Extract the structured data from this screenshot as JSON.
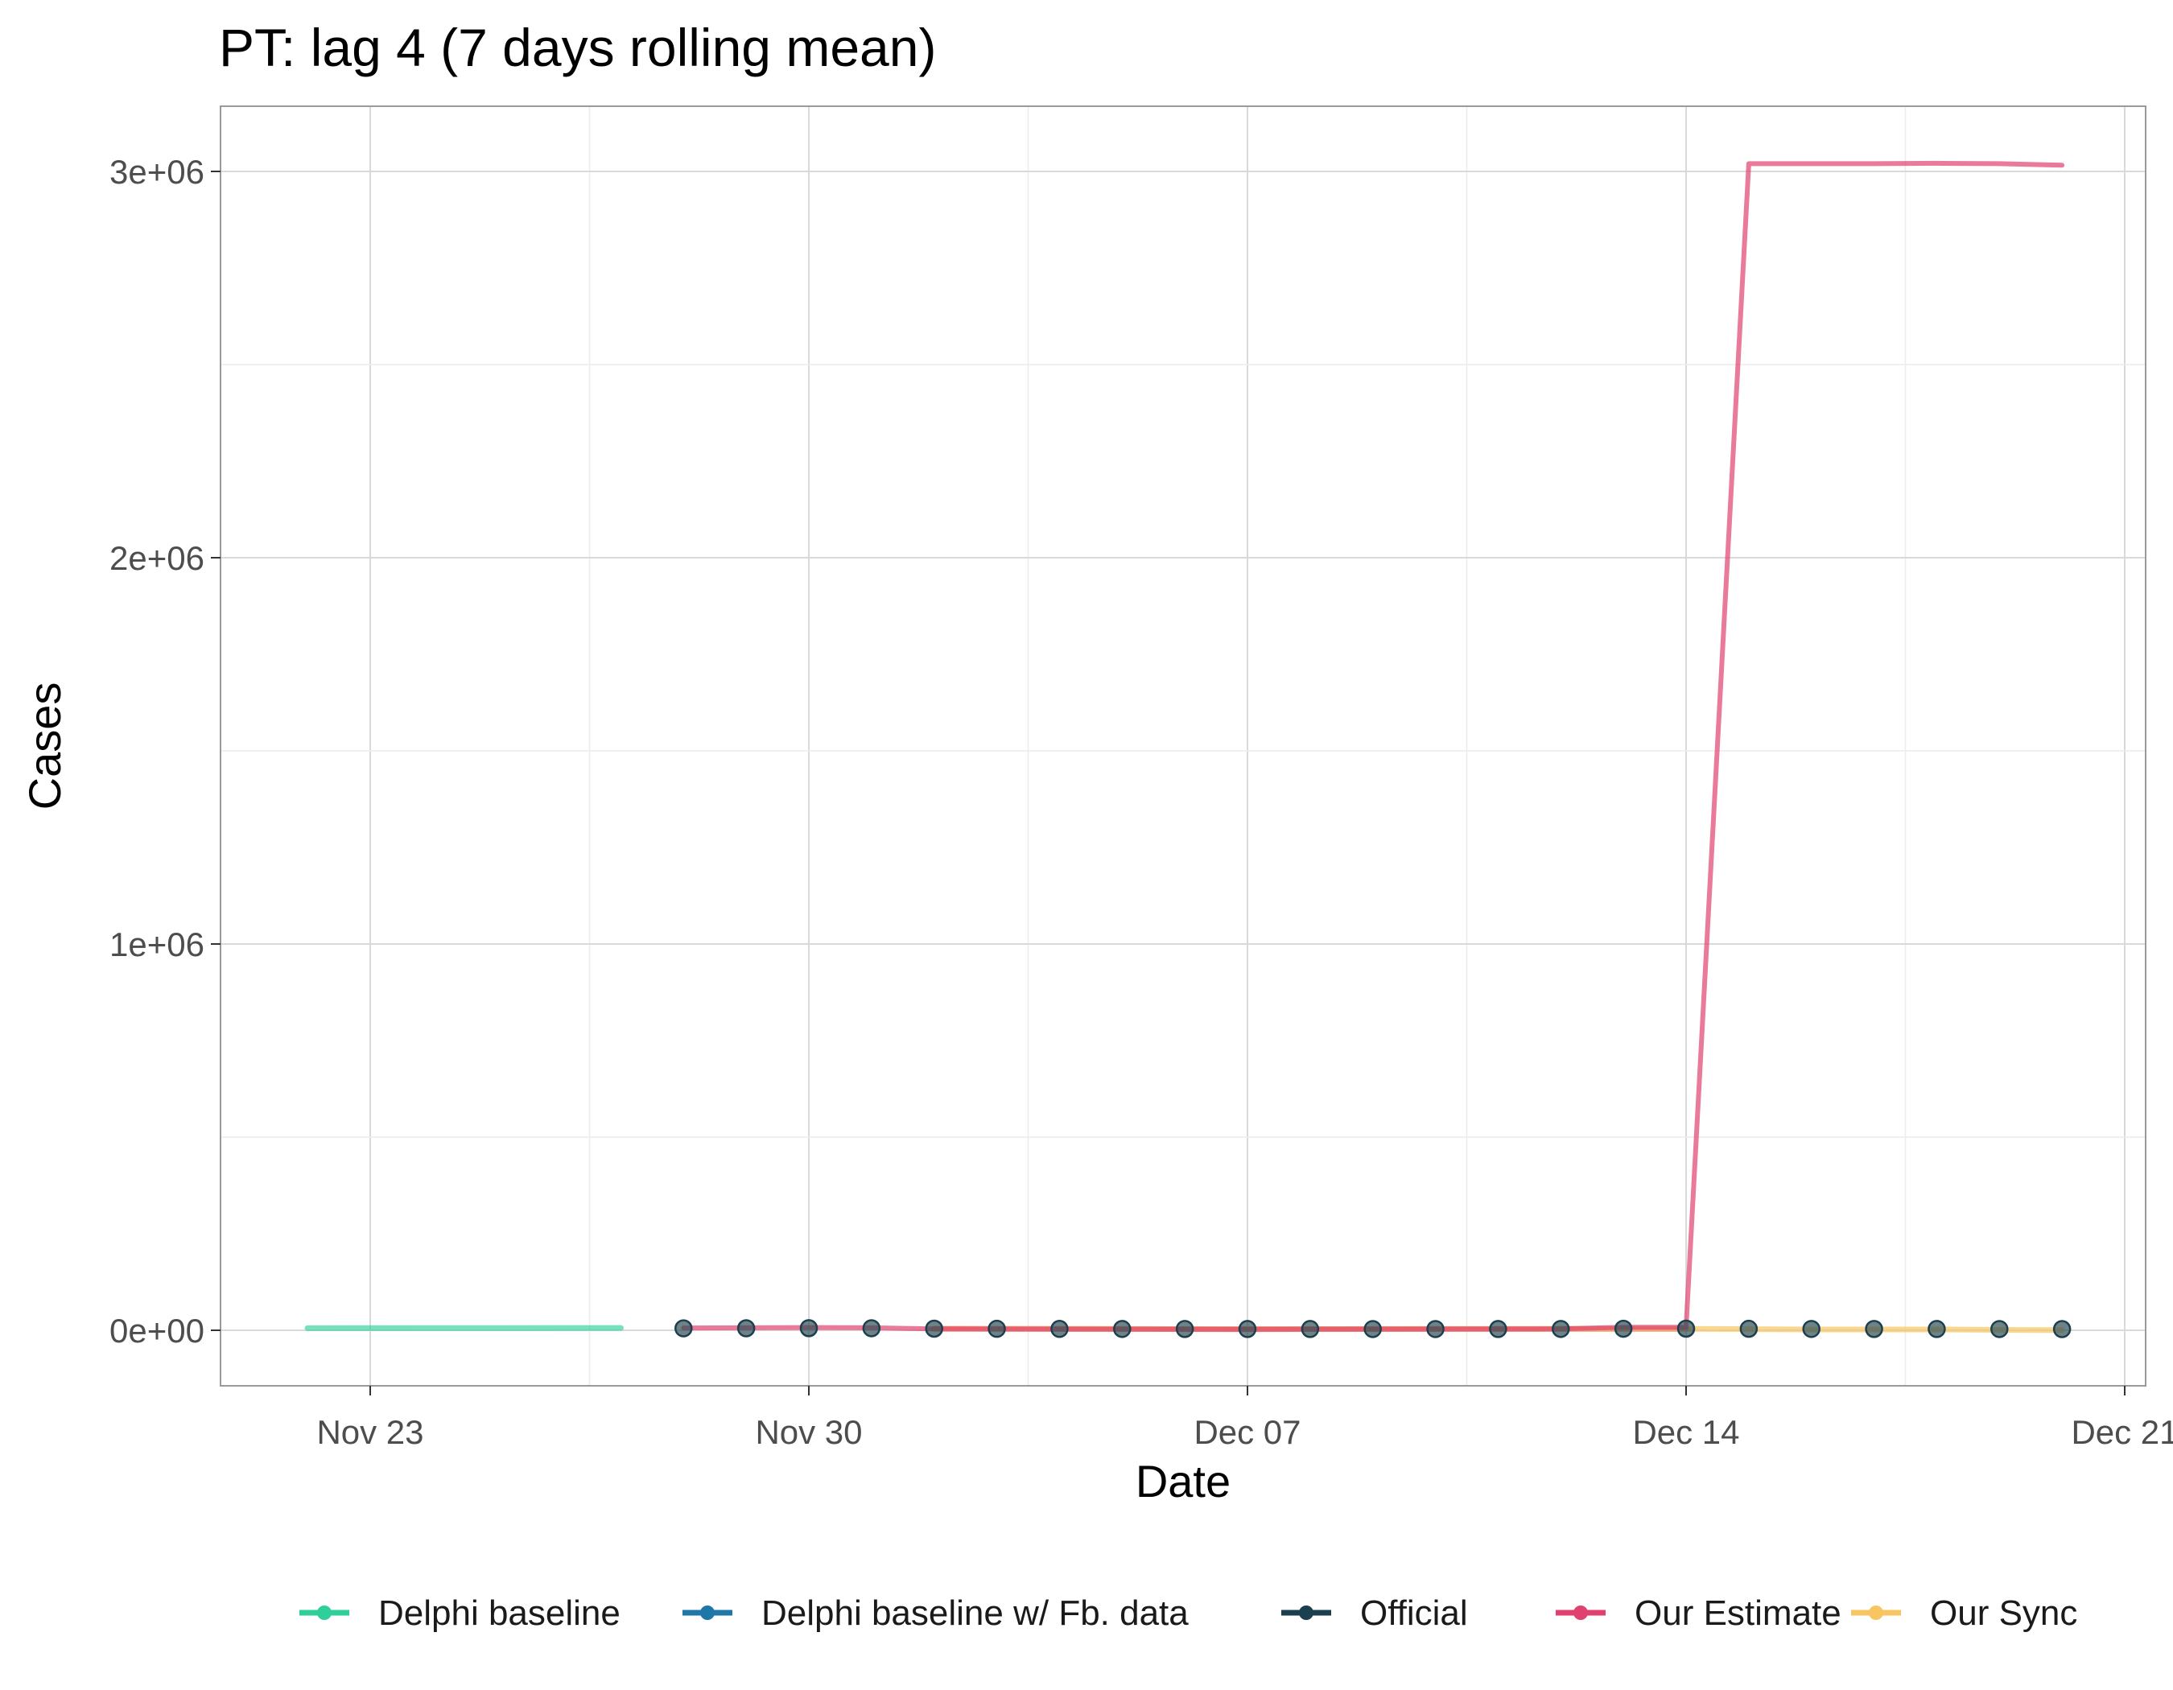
{
  "chart_data": {
    "type": "line",
    "title": "PT: lag 4 (7 days rolling mean)",
    "xlabel": "Date",
    "ylabel": "Cases",
    "x_ticks": [
      "Nov 23",
      "Nov 30",
      "Dec 07",
      "Dec 14",
      "Dec 21"
    ],
    "y_ticks": [
      "0e+00",
      "1e+06",
      "2e+06",
      "3e+06"
    ],
    "x_range": [
      "2020-11-20",
      "2020-12-21"
    ],
    "ylim": [
      -150000,
      3180000
    ],
    "grid": true,
    "legend_position": "bottom",
    "colors": {
      "delphi_baseline": "#2ecf9a",
      "delphi_fb": "#1f77a8",
      "official": "#1c3f50",
      "our_estimate": "#e0416f",
      "our_sync": "#f7c663",
      "overlap_band": "#f0a070"
    },
    "series": [
      {
        "name": "Delphi baseline",
        "color": "#2ecf9a",
        "style": "line",
        "points": [
          [
            "2020-11-22",
            5500
          ],
          [
            "2020-11-27",
            6000
          ]
        ]
      },
      {
        "name": "Delphi baseline w/ Fb. data",
        "color": "#1f77a8",
        "style": "line",
        "points": []
      },
      {
        "name": "Official",
        "color": "#1c3f50",
        "style": "points",
        "points": [
          [
            "2020-11-28",
            5000
          ],
          [
            "2020-11-29",
            5200
          ],
          [
            "2020-11-30",
            5500
          ],
          [
            "2020-12-01",
            5300
          ],
          [
            "2020-12-02",
            4200
          ],
          [
            "2020-12-03",
            3800
          ],
          [
            "2020-12-04",
            3600
          ],
          [
            "2020-12-05",
            3500
          ],
          [
            "2020-12-06",
            3400
          ],
          [
            "2020-12-07",
            3300
          ],
          [
            "2020-12-08",
            3300
          ],
          [
            "2020-12-09",
            3200
          ],
          [
            "2020-12-10",
            3200
          ],
          [
            "2020-12-11",
            3300
          ],
          [
            "2020-12-12",
            3500
          ],
          [
            "2020-12-13",
            4000
          ],
          [
            "2020-12-14",
            4200
          ],
          [
            "2020-12-15",
            3800
          ],
          [
            "2020-12-16",
            3500
          ],
          [
            "2020-12-17",
            3400
          ],
          [
            "2020-12-18",
            3300
          ],
          [
            "2020-12-19",
            3200
          ],
          [
            "2020-12-20",
            3100
          ]
        ]
      },
      {
        "name": "Our Estimate",
        "color": "#e0416f",
        "style": "line",
        "points": [
          [
            "2020-11-28",
            6000
          ],
          [
            "2020-11-30",
            7000
          ],
          [
            "2020-12-01",
            6500
          ],
          [
            "2020-12-02",
            3500
          ],
          [
            "2020-12-07",
            2500
          ],
          [
            "2020-12-12",
            3500
          ],
          [
            "2020-12-13",
            8000
          ],
          [
            "2020-12-14",
            8000
          ],
          [
            "2020-12-15",
            3020000
          ],
          [
            "2020-12-16",
            3020000
          ],
          [
            "2020-12-17",
            3020000
          ],
          [
            "2020-12-18",
            3021000
          ],
          [
            "2020-12-19",
            3020000
          ],
          [
            "2020-12-20",
            3016000
          ]
        ]
      },
      {
        "name": "Our Sync",
        "color": "#f7c663",
        "style": "line",
        "points": [
          [
            "2020-12-02",
            4000
          ],
          [
            "2020-12-07",
            3000
          ],
          [
            "2020-12-12",
            3500
          ],
          [
            "2020-12-14",
            3500
          ],
          [
            "2020-12-15",
            3000
          ],
          [
            "2020-12-16",
            2000
          ],
          [
            "2020-12-17",
            2000
          ],
          [
            "2020-12-18",
            2000
          ],
          [
            "2020-12-19",
            1000
          ],
          [
            "2020-12-20",
            500
          ]
        ]
      }
    ]
  }
}
